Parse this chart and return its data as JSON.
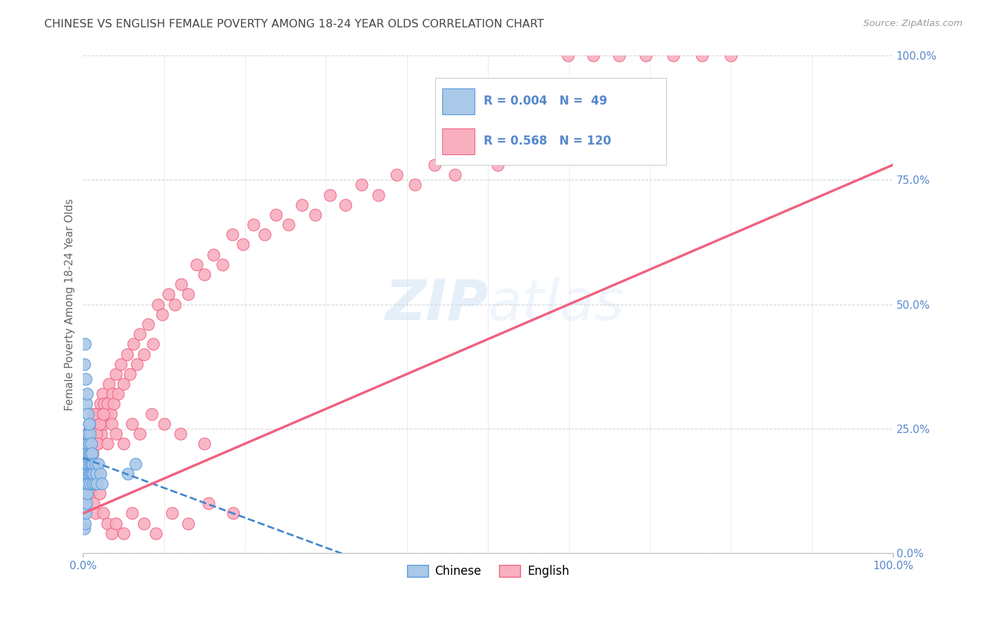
{
  "title": "CHINESE VS ENGLISH FEMALE POVERTY AMONG 18-24 YEAR OLDS CORRELATION CHART",
  "source": "Source: ZipAtlas.com",
  "ylabel": "Female Poverty Among 18-24 Year Olds",
  "xlim": [
    0,
    1
  ],
  "ylim": [
    0,
    1
  ],
  "ytick_labels": [
    "0.0%",
    "25.0%",
    "50.0%",
    "75.0%",
    "100.0%"
  ],
  "ytick_positions": [
    0,
    0.25,
    0.5,
    0.75,
    1.0
  ],
  "watermark_part1": "ZIP",
  "watermark_part2": "atlas",
  "chinese_R": "0.004",
  "chinese_N": "49",
  "english_R": "0.568",
  "english_N": "120",
  "chinese_fill": "#aac8e8",
  "chinese_edge": "#5599dd",
  "english_fill": "#f8b0c0",
  "english_edge": "#f06080",
  "chinese_line_color": "#4488cc",
  "english_line_color": "#f06080",
  "legend_chinese_label": "Chinese",
  "legend_english_label": "English",
  "background_color": "#ffffff",
  "grid_color": "#cccccc",
  "title_color": "#444444",
  "axis_label_color": "#666666",
  "tick_label_color": "#5588cc",
  "chinese_x": [
    0.001,
    0.001,
    0.002,
    0.002,
    0.003,
    0.003,
    0.003,
    0.004,
    0.004,
    0.004,
    0.005,
    0.005,
    0.005,
    0.005,
    0.006,
    0.006,
    0.006,
    0.007,
    0.007,
    0.007,
    0.007,
    0.008,
    0.008,
    0.008,
    0.009,
    0.009,
    0.01,
    0.01,
    0.011,
    0.011,
    0.012,
    0.012,
    0.013,
    0.014,
    0.015,
    0.016,
    0.017,
    0.019,
    0.021,
    0.023,
    0.001,
    0.002,
    0.003,
    0.004,
    0.005,
    0.006,
    0.007,
    0.055,
    0.065
  ],
  "chinese_y": [
    0.05,
    0.08,
    0.06,
    0.1,
    0.12,
    0.15,
    0.08,
    0.14,
    0.18,
    0.1,
    0.16,
    0.2,
    0.22,
    0.12,
    0.18,
    0.24,
    0.14,
    0.2,
    0.26,
    0.16,
    0.22,
    0.18,
    0.24,
    0.14,
    0.2,
    0.16,
    0.18,
    0.22,
    0.16,
    0.2,
    0.18,
    0.14,
    0.16,
    0.14,
    0.18,
    0.16,
    0.14,
    0.18,
    0.16,
    0.14,
    0.38,
    0.42,
    0.35,
    0.3,
    0.32,
    0.28,
    0.26,
    0.16,
    0.18
  ],
  "english_x": [
    0.002,
    0.003,
    0.004,
    0.005,
    0.006,
    0.007,
    0.008,
    0.009,
    0.01,
    0.011,
    0.012,
    0.013,
    0.014,
    0.015,
    0.016,
    0.017,
    0.018,
    0.019,
    0.02,
    0.021,
    0.022,
    0.023,
    0.024,
    0.025,
    0.026,
    0.028,
    0.03,
    0.032,
    0.034,
    0.036,
    0.038,
    0.04,
    0.043,
    0.046,
    0.05,
    0.054,
    0.058,
    0.062,
    0.066,
    0.07,
    0.075,
    0.08,
    0.086,
    0.092,
    0.098,
    0.105,
    0.113,
    0.121,
    0.13,
    0.14,
    0.15,
    0.161,
    0.172,
    0.184,
    0.197,
    0.21,
    0.224,
    0.238,
    0.254,
    0.27,
    0.287,
    0.305,
    0.324,
    0.344,
    0.365,
    0.387,
    0.41,
    0.434,
    0.459,
    0.485,
    0.512,
    0.54,
    0.569,
    0.599,
    0.63,
    0.662,
    0.695,
    0.729,
    0.764,
    0.8,
    0.004,
    0.006,
    0.008,
    0.01,
    0.012,
    0.014,
    0.016,
    0.018,
    0.02,
    0.025,
    0.03,
    0.035,
    0.04,
    0.05,
    0.06,
    0.07,
    0.085,
    0.1,
    0.12,
    0.15,
    0.003,
    0.005,
    0.007,
    0.009,
    0.011,
    0.013,
    0.015,
    0.02,
    0.025,
    0.03,
    0.035,
    0.04,
    0.05,
    0.06,
    0.075,
    0.09,
    0.11,
    0.13,
    0.155,
    0.185
  ],
  "english_y": [
    0.22,
    0.18,
    0.24,
    0.2,
    0.16,
    0.22,
    0.18,
    0.25,
    0.22,
    0.26,
    0.2,
    0.28,
    0.24,
    0.22,
    0.26,
    0.24,
    0.22,
    0.28,
    0.26,
    0.3,
    0.24,
    0.28,
    0.32,
    0.26,
    0.3,
    0.28,
    0.3,
    0.34,
    0.28,
    0.32,
    0.3,
    0.36,
    0.32,
    0.38,
    0.34,
    0.4,
    0.36,
    0.42,
    0.38,
    0.44,
    0.4,
    0.46,
    0.42,
    0.5,
    0.48,
    0.52,
    0.5,
    0.54,
    0.52,
    0.58,
    0.56,
    0.6,
    0.58,
    0.64,
    0.62,
    0.66,
    0.64,
    0.68,
    0.66,
    0.7,
    0.68,
    0.72,
    0.7,
    0.74,
    0.72,
    0.76,
    0.74,
    0.78,
    0.76,
    0.8,
    0.78,
    0.82,
    0.8,
    1.0,
    1.0,
    1.0,
    1.0,
    1.0,
    1.0,
    1.0,
    0.2,
    0.24,
    0.18,
    0.26,
    0.22,
    0.28,
    0.24,
    0.22,
    0.26,
    0.28,
    0.22,
    0.26,
    0.24,
    0.22,
    0.26,
    0.24,
    0.28,
    0.26,
    0.24,
    0.22,
    0.16,
    0.14,
    0.18,
    0.12,
    0.15,
    0.1,
    0.08,
    0.12,
    0.08,
    0.06,
    0.04,
    0.06,
    0.04,
    0.08,
    0.06,
    0.04,
    0.08,
    0.06,
    0.1,
    0.08
  ]
}
